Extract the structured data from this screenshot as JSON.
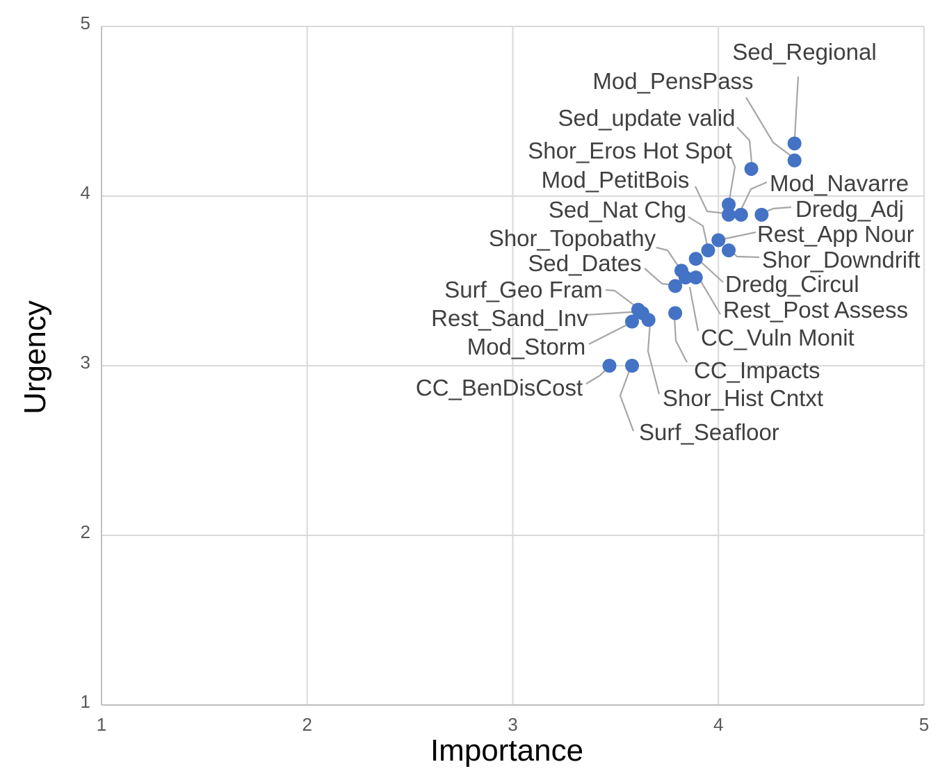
{
  "chart_data": {
    "type": "scatter",
    "title": "",
    "xlabel": "Importance",
    "ylabel": "Urgency",
    "xlim": [
      1,
      5
    ],
    "ylim": [
      1,
      5
    ],
    "xticks": [
      1,
      2,
      3,
      4,
      5
    ],
    "yticks": [
      1,
      2,
      3,
      4,
      5
    ],
    "grid": true,
    "marker_color": "#4472C4",
    "points": [
      {
        "label": "Sed_Regional",
        "x": 4.37,
        "y": 4.31
      },
      {
        "label": "Mod_PensPass",
        "x": 4.37,
        "y": 4.21
      },
      {
        "label": "Sed_update valid",
        "x": 4.16,
        "y": 4.16
      },
      {
        "label": "Shor_Eros Hot Spot",
        "x": 4.05,
        "y": 3.95
      },
      {
        "label": "Mod_Navarre",
        "x": 4.11,
        "y": 3.89
      },
      {
        "label": "Mod_PetitBois",
        "x": 4.05,
        "y": 3.89
      },
      {
        "label": "Dredg_Adj",
        "x": 4.21,
        "y": 3.89
      },
      {
        "label": "Sed_Nat Chg",
        "x": 3.95,
        "y": 3.68
      },
      {
        "label": "Rest_App Nour",
        "x": 4.0,
        "y": 3.74
      },
      {
        "label": "Shor_Topobathy",
        "x": 3.82,
        "y": 3.56
      },
      {
        "label": "Shor_Downdrift",
        "x": 4.05,
        "y": 3.68
      },
      {
        "label": "Sed_Dates",
        "x": 3.79,
        "y": 3.47
      },
      {
        "label": "Dredg_Circul",
        "x": 3.89,
        "y": 3.63
      },
      {
        "label": "Rest_Post Assess",
        "x": 3.89,
        "y": 3.52
      },
      {
        "label": "CC_Vuln Monit",
        "x": 3.84,
        "y": 3.52
      },
      {
        "label": "Surf_Geo Fram",
        "x": 3.61,
        "y": 3.33
      },
      {
        "label": "Rest_Sand_Inv",
        "x": 3.63,
        "y": 3.31
      },
      {
        "label": "Mod_Storm",
        "x": 3.58,
        "y": 3.26
      },
      {
        "label": "Shor_Hist Cntxt",
        "x": 3.66,
        "y": 3.27
      },
      {
        "label": "CC_Impacts",
        "x": 3.79,
        "y": 3.31
      },
      {
        "label": "CC_BenDisCost",
        "x": 3.47,
        "y": 3.0
      },
      {
        "label": "Surf_Seafloor",
        "x": 3.58,
        "y": 3.0
      }
    ]
  }
}
